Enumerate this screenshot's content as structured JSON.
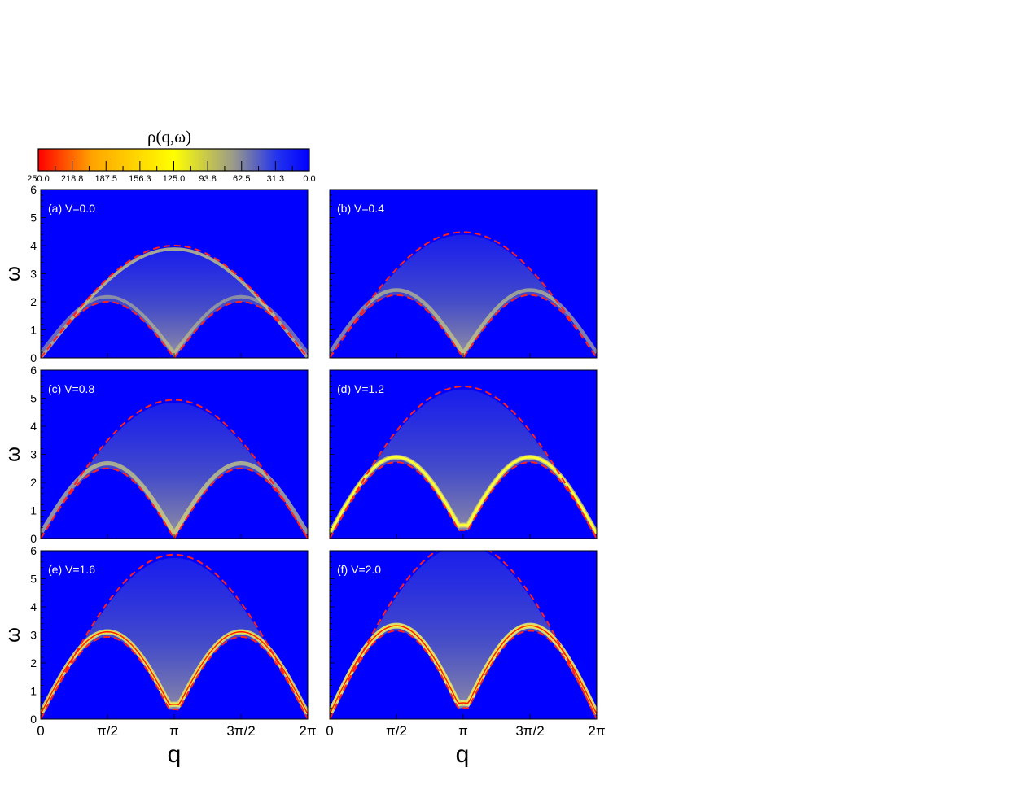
{
  "colorbar": {
    "title": "ρ(q,ω)",
    "ticks": [
      "250.0",
      "218.8",
      "187.5",
      "156.3",
      "125.0",
      "93.8",
      "62.5",
      "31.3",
      "0.0"
    ],
    "range": [
      250,
      0
    ],
    "colors": [
      "#ff0000",
      "#ffa500",
      "#ffff00",
      "#9a9a8a",
      "#2233ee",
      "#0000ff"
    ]
  },
  "chart_data": {
    "type": "heatmap",
    "xlabel": "q",
    "ylabel": "ω",
    "xlim": [
      0,
      6.2832
    ],
    "ylim": [
      0,
      6
    ],
    "x_ticks": [
      {
        "value": 0,
        "label": "0"
      },
      {
        "value": 1.5708,
        "label": "π/2"
      },
      {
        "value": 3.1416,
        "label": "π"
      },
      {
        "value": 4.7124,
        "label": "3π/2"
      },
      {
        "value": 6.2832,
        "label": "2π"
      }
    ],
    "y_ticks": [
      "0",
      "1",
      "2",
      "3",
      "4",
      "5",
      "6"
    ],
    "background_color": "#0000ff",
    "boundary_color": "#ff2020",
    "panels": [
      {
        "label": "(a) V=0.0",
        "V": 0.0,
        "upper_boundary_peak": 4.0,
        "lower_boundary_peak": 2.0,
        "gap_at_pi": 0.0
      },
      {
        "label": "(b) V=0.4",
        "V": 0.4,
        "upper_boundary_peak": 4.48,
        "lower_boundary_peak": 2.24,
        "gap_at_pi": 0.0
      },
      {
        "label": "(c) V=0.8",
        "V": 0.8,
        "upper_boundary_peak": 4.94,
        "lower_boundary_peak": 2.5,
        "gap_at_pi": 0.0
      },
      {
        "label": "(d) V=1.2",
        "V": 1.2,
        "upper_boundary_peak": 5.42,
        "lower_boundary_peak": 2.72,
        "gap_at_pi": 0.3
      },
      {
        "label": "(e) V=1.6",
        "V": 1.6,
        "upper_boundary_peak": 5.86,
        "lower_boundary_peak": 2.93,
        "gap_at_pi": 0.35
      },
      {
        "label": "(f) V=2.0",
        "V": 2.0,
        "upper_boundary_peak": 6.3,
        "lower_boundary_peak": 3.15,
        "gap_at_pi": 0.4
      }
    ]
  }
}
